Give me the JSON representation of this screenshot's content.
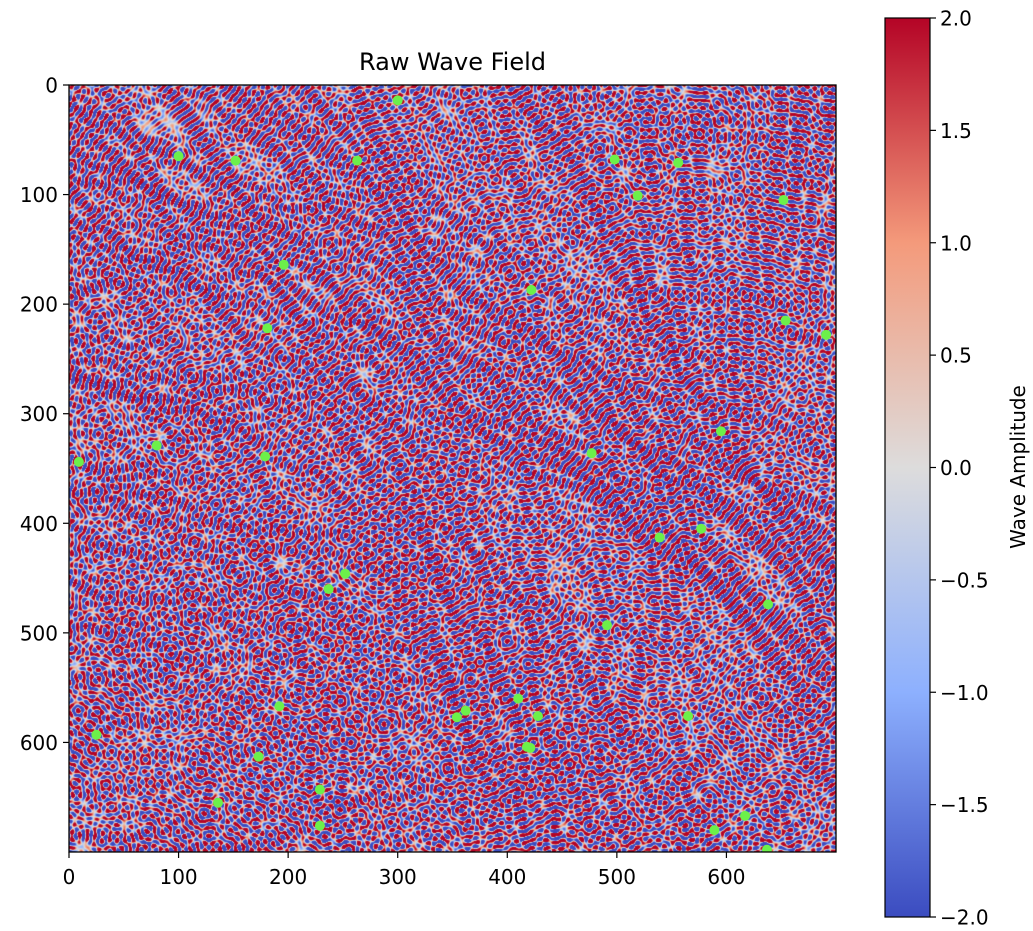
{
  "chart_data": {
    "type": "heatmap",
    "title": "Raw Wave Field",
    "xlim": [
      0,
      700
    ],
    "ylim": [
      700,
      0
    ],
    "grid": false,
    "x_ticks": [
      "0",
      "100",
      "200",
      "300",
      "400",
      "500",
      "600"
    ],
    "y_ticks": [
      "0",
      "100",
      "200",
      "300",
      "400",
      "500",
      "600"
    ],
    "colorbar": {
      "label": "Wave Amplitude",
      "range": [
        -2.0,
        2.0
      ],
      "ticks": [
        "2.0",
        "1.5",
        "1.0",
        "0.5",
        "0.0",
        "−0.5",
        "−1.0",
        "−1.5",
        "−2.0"
      ],
      "colors": [
        "#3b4cc0",
        "#8db0fe",
        "#dddcdc",
        "#f49a7b",
        "#b40426"
      ]
    },
    "markers": {
      "color": "#6cf04a",
      "points": [
        [
          300,
          14
        ],
        [
          100,
          65
        ],
        [
          152,
          69
        ],
        [
          263,
          69
        ],
        [
          498,
          68
        ],
        [
          556,
          71
        ],
        [
          519,
          101
        ],
        [
          652,
          105
        ],
        [
          196,
          164
        ],
        [
          422,
          187
        ],
        [
          181,
          222
        ],
        [
          654,
          215
        ],
        [
          691,
          228
        ],
        [
          80,
          329
        ],
        [
          179,
          339
        ],
        [
          9,
          344
        ],
        [
          477,
          336
        ],
        [
          595,
          316
        ],
        [
          577,
          405
        ],
        [
          539,
          413
        ],
        [
          252,
          446
        ],
        [
          237,
          460
        ],
        [
          638,
          474
        ],
        [
          491,
          493
        ],
        [
          192,
          567
        ],
        [
          410,
          560
        ],
        [
          362,
          571
        ],
        [
          354,
          577
        ],
        [
          428,
          576
        ],
        [
          565,
          576
        ],
        [
          25,
          593
        ],
        [
          418,
          604
        ],
        [
          421,
          605
        ],
        [
          173,
          613
        ],
        [
          229,
          643
        ],
        [
          136,
          655
        ],
        [
          617,
          667
        ],
        [
          229,
          676
        ],
        [
          589,
          680
        ],
        [
          637,
          698
        ]
      ]
    }
  }
}
